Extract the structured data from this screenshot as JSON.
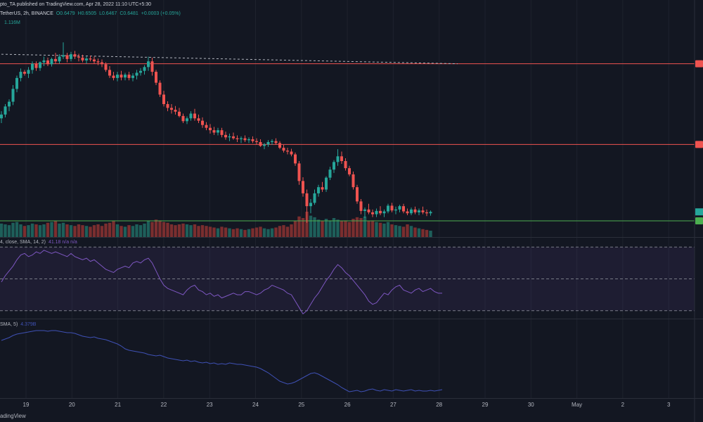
{
  "header": {
    "publish_line": "pto_TA published on TradingView.com, Apr 28, 2022 11:10 UTC+5:30",
    "symbol_line": "TetherUS, 2h, BINANCE",
    "ohlc": {
      "o": "O0.6479",
      "h": "H0.6505",
      "l": "L0.6467",
      "c": "C0.6481",
      "chg": "+0.0003 (+0.05%)"
    },
    "volume_value": "1.116M",
    "rsi_label": "4, close, SMA, 14, 2)",
    "rsi_values": "41.18  n/a  n/a",
    "obv_label": "SMA, 5)",
    "obv_value": "4.379B"
  },
  "footer": {
    "brand": "adingView"
  },
  "colors": {
    "background": "#131722",
    "up": "#26a69a",
    "down": "#ef5350",
    "vol_up": "#1e5f5a",
    "vol_down": "#7a2e2f",
    "resistance": "#ef5350",
    "support": "#4caf50",
    "rsi_line": "#7e57c2",
    "obv_line": "#3f51b5"
  },
  "chart_data": {
    "type": "candlestick",
    "timeframe": "2h",
    "x_tick_labels": [
      "19",
      "20",
      "21",
      "22",
      "23",
      "24",
      "25",
      "26",
      "27",
      "28",
      "29",
      "30",
      "May",
      "2",
      "3"
    ],
    "candles": [
      [
        0.657,
        0.6585,
        0.656,
        0.6578,
        1.7
      ],
      [
        0.6578,
        0.66,
        0.6572,
        0.6595,
        1.6
      ],
      [
        0.6595,
        0.661,
        0.6585,
        0.6605,
        1.5
      ],
      [
        0.6605,
        0.664,
        0.6598,
        0.6632,
        1.8
      ],
      [
        0.6632,
        0.666,
        0.6625,
        0.6655,
        1.9
      ],
      [
        0.6655,
        0.6675,
        0.6648,
        0.6668,
        1.6
      ],
      [
        0.6668,
        0.6672,
        0.666,
        0.6664,
        1.4
      ],
      [
        0.6664,
        0.6678,
        0.6655,
        0.6672,
        1.5
      ],
      [
        0.6672,
        0.669,
        0.6664,
        0.6685,
        1.7
      ],
      [
        0.6685,
        0.669,
        0.667,
        0.6676,
        1.6
      ],
      [
        0.6676,
        0.669,
        0.667,
        0.6688,
        1.5
      ],
      [
        0.6688,
        0.67,
        0.668,
        0.6692,
        1.6
      ],
      [
        0.6692,
        0.6698,
        0.668,
        0.6684,
        1.8
      ],
      [
        0.6684,
        0.6698,
        0.6679,
        0.6695,
        1.9
      ],
      [
        0.6695,
        0.6708,
        0.6685,
        0.669,
        2.0
      ],
      [
        0.669,
        0.6705,
        0.6685,
        0.67,
        1.7
      ],
      [
        0.67,
        0.673,
        0.6695,
        0.6703,
        1.8
      ],
      [
        0.6703,
        0.6708,
        0.6688,
        0.6695,
        1.6
      ],
      [
        0.6695,
        0.671,
        0.669,
        0.6705,
        1.5
      ],
      [
        0.6705,
        0.6712,
        0.6695,
        0.67,
        1.4
      ],
      [
        0.67,
        0.6706,
        0.669,
        0.6698,
        1.6
      ],
      [
        0.6698,
        0.6704,
        0.6688,
        0.6692,
        1.5
      ],
      [
        0.6692,
        0.67,
        0.6685,
        0.6696,
        1.4
      ],
      [
        0.6696,
        0.6702,
        0.669,
        0.6694,
        1.3
      ],
      [
        0.6694,
        0.67,
        0.6685,
        0.669,
        1.5
      ],
      [
        0.669,
        0.6696,
        0.6682,
        0.6688,
        1.6
      ],
      [
        0.6688,
        0.6694,
        0.6678,
        0.6684,
        1.4
      ],
      [
        0.6684,
        0.6688,
        0.6668,
        0.6672,
        1.7
      ],
      [
        0.6672,
        0.668,
        0.6655,
        0.666,
        1.8
      ],
      [
        0.666,
        0.6668,
        0.665,
        0.6655,
        2.0
      ],
      [
        0.6655,
        0.6668,
        0.6648,
        0.6662,
        1.6
      ],
      [
        0.6662,
        0.667,
        0.665,
        0.6656,
        1.4
      ],
      [
        0.6656,
        0.6666,
        0.665,
        0.6662,
        1.3
      ],
      [
        0.6662,
        0.6668,
        0.665,
        0.6655,
        1.5
      ],
      [
        0.6655,
        0.6665,
        0.6648,
        0.666,
        1.4
      ],
      [
        0.666,
        0.6672,
        0.6652,
        0.6666,
        1.6
      ],
      [
        0.6666,
        0.6676,
        0.666,
        0.667,
        1.5
      ],
      [
        0.667,
        0.6682,
        0.6662,
        0.6678,
        1.7
      ],
      [
        0.6678,
        0.67,
        0.667,
        0.669,
        2.0
      ],
      [
        0.669,
        0.6698,
        0.666,
        0.6668,
        1.9
      ],
      [
        0.6668,
        0.6672,
        0.664,
        0.6645,
        2.2
      ],
      [
        0.6645,
        0.665,
        0.6615,
        0.662,
        2.1
      ],
      [
        0.662,
        0.6628,
        0.6595,
        0.66,
        1.9
      ],
      [
        0.66,
        0.6606,
        0.6585,
        0.6592,
        1.8
      ],
      [
        0.6592,
        0.66,
        0.658,
        0.6588,
        1.6
      ],
      [
        0.6588,
        0.6596,
        0.6578,
        0.6584,
        1.5
      ],
      [
        0.6584,
        0.6592,
        0.6572,
        0.6575,
        1.6
      ],
      [
        0.6575,
        0.658,
        0.656,
        0.6564,
        1.7
      ],
      [
        0.6564,
        0.6574,
        0.6558,
        0.657,
        1.6
      ],
      [
        0.657,
        0.6585,
        0.6565,
        0.658,
        1.5
      ],
      [
        0.658,
        0.659,
        0.6565,
        0.657,
        1.6
      ],
      [
        0.657,
        0.6578,
        0.656,
        0.6565,
        1.4
      ],
      [
        0.6565,
        0.6572,
        0.655,
        0.6556,
        1.5
      ],
      [
        0.6556,
        0.6562,
        0.6545,
        0.655,
        1.4
      ],
      [
        0.655,
        0.6558,
        0.6538,
        0.6545,
        1.3
      ],
      [
        0.6545,
        0.6552,
        0.6535,
        0.654,
        1.2
      ],
      [
        0.654,
        0.655,
        0.6534,
        0.6545,
        1.1
      ],
      [
        0.6545,
        0.655,
        0.653,
        0.6535,
        1.3
      ],
      [
        0.6535,
        0.6542,
        0.6525,
        0.653,
        1.2
      ],
      [
        0.653,
        0.6538,
        0.6522,
        0.6532,
        1.1
      ],
      [
        0.6532,
        0.654,
        0.6525,
        0.6528,
        1.0
      ],
      [
        0.6528,
        0.6534,
        0.652,
        0.6526,
        1.1
      ],
      [
        0.6526,
        0.6532,
        0.6518,
        0.6528,
        1.0
      ],
      [
        0.6528,
        0.6534,
        0.652,
        0.6524,
        0.9
      ],
      [
        0.6524,
        0.653,
        0.6518,
        0.6526,
        1.0
      ],
      [
        0.6526,
        0.6532,
        0.6518,
        0.6522,
        1.1
      ],
      [
        0.6522,
        0.6528,
        0.6514,
        0.652,
        1.2
      ],
      [
        0.652,
        0.6526,
        0.651,
        0.6512,
        1.3
      ],
      [
        0.6512,
        0.6518,
        0.6505,
        0.6515,
        1.1
      ],
      [
        0.6515,
        0.6524,
        0.651,
        0.652,
        1.0
      ],
      [
        0.652,
        0.6526,
        0.6514,
        0.6522,
        1.1
      ],
      [
        0.6522,
        0.6528,
        0.6514,
        0.6518,
        1.2
      ],
      [
        0.6518,
        0.6522,
        0.6505,
        0.6508,
        1.4
      ],
      [
        0.6508,
        0.6514,
        0.6498,
        0.6502,
        1.5
      ],
      [
        0.6502,
        0.6508,
        0.6494,
        0.65,
        1.3
      ],
      [
        0.65,
        0.6506,
        0.649,
        0.6494,
        1.6
      ],
      [
        0.6494,
        0.6498,
        0.647,
        0.6475,
        2.0
      ],
      [
        0.6475,
        0.648,
        0.643,
        0.6438,
        2.6
      ],
      [
        0.6438,
        0.6446,
        0.6405,
        0.6412,
        2.4
      ],
      [
        0.6412,
        0.642,
        0.635,
        0.6385,
        3.2
      ],
      [
        0.6385,
        0.64,
        0.637,
        0.6392,
        2.7
      ],
      [
        0.6392,
        0.642,
        0.6388,
        0.6412,
        2.5
      ],
      [
        0.6412,
        0.643,
        0.6405,
        0.6425,
        2.2
      ],
      [
        0.6425,
        0.6436,
        0.6415,
        0.642,
        2.0
      ],
      [
        0.642,
        0.6448,
        0.6415,
        0.6445,
        2.3
      ],
      [
        0.6445,
        0.6468,
        0.644,
        0.6462,
        2.1
      ],
      [
        0.6462,
        0.6482,
        0.6455,
        0.6478,
        2.4
      ],
      [
        0.6478,
        0.6505,
        0.647,
        0.649,
        2.2
      ],
      [
        0.649,
        0.65,
        0.6474,
        0.648,
        2.0
      ],
      [
        0.648,
        0.6486,
        0.646,
        0.6465,
        2.1
      ],
      [
        0.6465,
        0.647,
        0.6448,
        0.6452,
        1.9
      ],
      [
        0.6452,
        0.6458,
        0.642,
        0.6425,
        2.3
      ],
      [
        0.6425,
        0.643,
        0.639,
        0.6395,
        2.5
      ],
      [
        0.6395,
        0.64,
        0.6368,
        0.6375,
        2.4
      ],
      [
        0.6375,
        0.6382,
        0.636,
        0.6378,
        2.6
      ],
      [
        0.6378,
        0.639,
        0.6368,
        0.6372,
        2.0
      ],
      [
        0.6372,
        0.6378,
        0.6362,
        0.6368,
        2.1
      ],
      [
        0.6368,
        0.638,
        0.6362,
        0.6375,
        1.9
      ],
      [
        0.6375,
        0.6385,
        0.6366,
        0.637,
        1.8
      ],
      [
        0.637,
        0.6378,
        0.6362,
        0.6374,
        1.7
      ],
      [
        0.6374,
        0.639,
        0.637,
        0.6386,
        1.9
      ],
      [
        0.6386,
        0.6392,
        0.6372,
        0.6376,
        1.6
      ],
      [
        0.6376,
        0.6384,
        0.6368,
        0.6378,
        1.5
      ],
      [
        0.6378,
        0.6388,
        0.6372,
        0.6385,
        1.4
      ],
      [
        0.6385,
        0.639,
        0.637,
        0.6374,
        1.3
      ],
      [
        0.6374,
        0.638,
        0.6366,
        0.637,
        1.6
      ],
      [
        0.637,
        0.6382,
        0.6366,
        0.6378,
        1.4
      ],
      [
        0.6378,
        0.6384,
        0.6368,
        0.6372,
        1.2
      ],
      [
        0.6372,
        0.638,
        0.6366,
        0.6376,
        1.1
      ],
      [
        0.6376,
        0.6384,
        0.6368,
        0.6372,
        1.0
      ],
      [
        0.6372,
        0.6378,
        0.6364,
        0.637,
        0.9
      ],
      [
        0.637,
        0.6376,
        0.6365,
        0.6373,
        0.8
      ]
    ],
    "levels": [
      {
        "kind": "resistance",
        "value": 0.6685
      },
      {
        "kind": "resistance",
        "value": 0.6515
      },
      {
        "kind": "support",
        "value": 0.6354
      }
    ],
    "trendline": {
      "x_start": 0,
      "y_start": 0.6705,
      "x_end": 118,
      "y_end": 0.6685
    },
    "price_range": [
      0.632,
      0.676
    ],
    "volume_range": [
      0,
      8
    ],
    "rsi": {
      "range": [
        25,
        75
      ],
      "bands": [
        30,
        50,
        70
      ],
      "values": [
        48,
        52,
        55,
        58,
        62,
        65,
        66,
        64,
        65,
        67,
        66,
        68,
        67,
        66,
        67,
        66,
        65,
        64,
        66,
        64,
        63,
        62,
        63,
        61,
        62,
        60,
        58,
        56,
        55,
        54,
        56,
        57,
        58,
        57,
        60,
        61,
        60,
        62,
        63,
        60,
        55,
        50,
        46,
        44,
        43,
        42,
        41,
        40,
        43,
        45,
        46,
        43,
        42,
        40,
        41,
        39,
        40,
        38,
        39,
        40,
        41,
        40,
        40,
        42,
        42,
        41,
        40,
        41,
        43,
        44,
        46,
        45,
        44,
        43,
        41,
        40,
        36,
        32,
        28,
        30,
        34,
        38,
        41,
        45,
        49,
        52,
        56,
        59,
        57,
        54,
        52,
        49,
        46,
        43,
        40,
        36,
        34,
        35,
        38,
        41,
        40,
        43,
        45,
        46,
        43,
        42,
        41,
        43,
        44,
        42,
        43,
        44,
        42,
        41,
        41
      ]
    },
    "obv": {
      "range": [
        3.9,
        5.0
      ],
      "values": [
        4.72,
        4.74,
        4.76,
        4.79,
        4.81,
        4.82,
        4.83,
        4.84,
        4.85,
        4.86,
        4.86,
        4.86,
        4.85,
        4.86,
        4.86,
        4.85,
        4.84,
        4.83,
        4.83,
        4.82,
        4.8,
        4.78,
        4.77,
        4.76,
        4.77,
        4.75,
        4.74,
        4.73,
        4.71,
        4.69,
        4.67,
        4.64,
        4.6,
        4.58,
        4.57,
        4.56,
        4.55,
        4.54,
        4.52,
        4.51,
        4.5,
        4.51,
        4.49,
        4.47,
        4.46,
        4.45,
        4.44,
        4.43,
        4.44,
        4.42,
        4.43,
        4.41,
        4.4,
        4.41,
        4.39,
        4.4,
        4.38,
        4.39,
        4.38,
        4.4,
        4.39,
        4.38,
        4.38,
        4.37,
        4.36,
        4.35,
        4.34,
        4.32,
        4.29,
        4.26,
        4.22,
        4.18,
        4.14,
        4.12,
        4.1,
        4.11,
        4.13,
        4.16,
        4.19,
        4.22,
        4.25,
        4.26,
        4.24,
        4.21,
        4.18,
        4.15,
        4.12,
        4.09,
        4.05,
        4.02,
        3.99,
        4.0,
        4.01,
        3.99,
        4.0,
        4.02,
        4.03,
        4.01,
        4.0,
        4.02,
        4.01,
        4.0,
        4.02,
        4.01,
        4.0,
        4.01,
        4.02,
        4.0,
        4.01,
        4.0,
        4.0,
        4.01,
        4.0,
        4.01,
        4.02
      ]
    }
  }
}
